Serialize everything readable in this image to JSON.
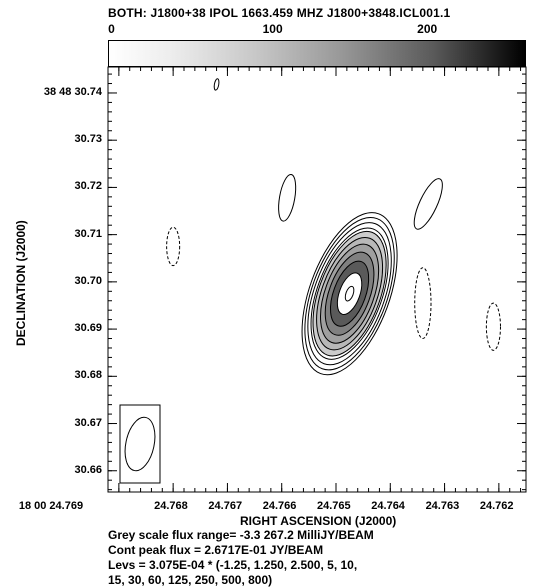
{
  "title": "BOTH: J1800+38  IPOL  1663.459 MHZ  J1800+3848.ICL001.1",
  "colorbar": {
    "ticks": [
      {
        "label": "0",
        "value": 0
      },
      {
        "label": "100",
        "value": 100
      },
      {
        "label": "200",
        "value": 200
      }
    ],
    "range": [
      -3.3,
      267.2
    ]
  },
  "chart_data": {
    "type": "contour",
    "xlabel": "RIGHT ASCENSION (J2000)",
    "ylabel": "DECLINATION (J2000)",
    "x_ticks": [
      {
        "label": "18 00 24.769",
        "value": 24.769
      },
      {
        "label": "24.768",
        "value": 24.768
      },
      {
        "label": "24.767",
        "value": 24.767
      },
      {
        "label": "24.766",
        "value": 24.766
      },
      {
        "label": "24.765",
        "value": 24.765
      },
      {
        "label": "24.764",
        "value": 24.764
      },
      {
        "label": "24.763",
        "value": 24.763
      },
      {
        "label": "24.762",
        "value": 24.762
      }
    ],
    "y_ticks": [
      {
        "label": "38 48 30.74",
        "value": 30.74
      },
      {
        "label": "30.73",
        "value": 30.73
      },
      {
        "label": "30.72",
        "value": 30.72
      },
      {
        "label": "30.71",
        "value": 30.71
      },
      {
        "label": "30.70",
        "value": 30.7
      },
      {
        "label": "30.69",
        "value": 30.69
      },
      {
        "label": "30.68",
        "value": 30.68
      },
      {
        "label": "30.67",
        "value": 30.67
      },
      {
        "label": "30.66",
        "value": 30.66
      }
    ],
    "xlim": [
      24.7692,
      24.7615
    ],
    "ylim": [
      30.6555,
      30.7455
    ],
    "peak": {
      "ra": 24.76475,
      "dec": 30.6975,
      "flux_jy_per_beam": 0.26717
    },
    "source_pa_deg": 20,
    "contour_levels_rel": [
      1.25,
      2.5,
      5,
      10,
      15,
      30,
      60,
      125,
      250,
      500,
      800
    ],
    "negative_contours": [
      {
        "ra": 24.768,
        "dec": 30.7075,
        "len": 0.0065,
        "wid": 0.00012
      },
      {
        "ra": 24.7634,
        "dec": 30.6955,
        "len": 0.012,
        "wid": 0.00015
      },
      {
        "ra": 24.7621,
        "dec": 30.6905,
        "len": 0.008,
        "wid": 0.00013
      }
    ],
    "positive_islands": [
      {
        "ra": 24.7659,
        "dec": 30.7178,
        "len": 0.009,
        "wid": 0.00014
      },
      {
        "ra": 24.7633,
        "dec": 30.7165,
        "len": 0.0105,
        "wid": 0.00016
      },
      {
        "ra": 24.7672,
        "dec": 30.7418,
        "len": 0.0022,
        "wid": 4e-05
      }
    ],
    "beam": {
      "major_dec": 0.0115,
      "minor_ra": 0.00052
    }
  },
  "footer": {
    "line1": "Grey scale flux range= -3.3 267.2 MilliJY/BEAM",
    "line2": "Cont peak flux =  2.6717E-01 JY/BEAM",
    "line3": "Levs = 3.075E-04 * (-1.25, 1.250, 2.500, 5, 10,",
    "line4": "15, 30, 60, 125, 250, 500, 800)"
  }
}
